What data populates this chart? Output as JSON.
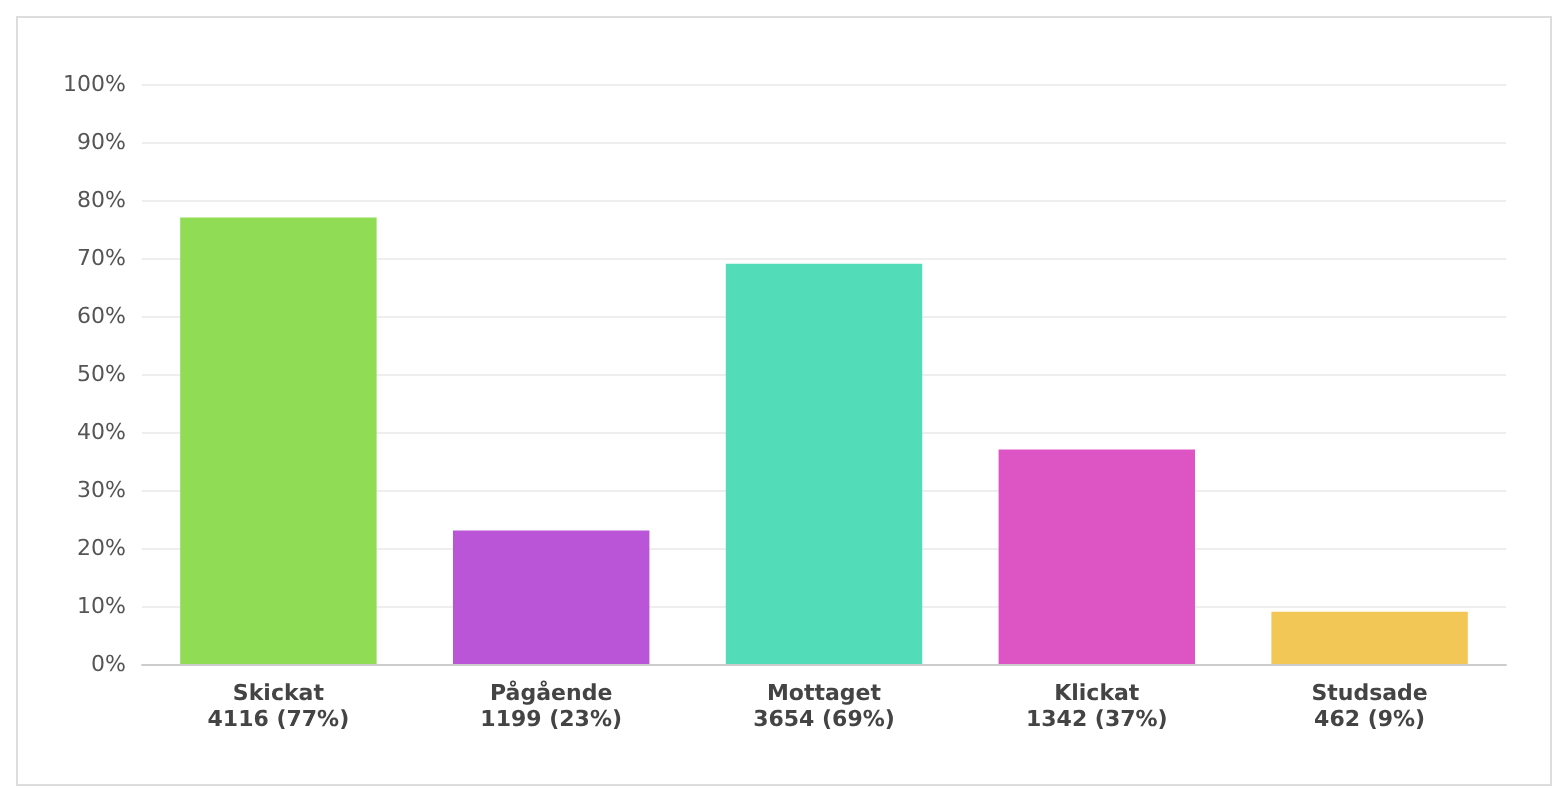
{
  "chart_data": {
    "type": "bar",
    "categories": [
      "Skickat\n4116 (77%)",
      "Pågående\n1199 (23%)",
      "Mottaget\n3654 (69%)",
      "Klickat\n1342 (37%)",
      "Studsade\n462 (9%)"
    ],
    "values": [
      77,
      23,
      69,
      37,
      9
    ],
    "colors": [
      "#91dc55",
      "#bb55d8",
      "#52dcb8",
      "#dd55c4",
      "#f2c755"
    ],
    "ylim": [
      0,
      100
    ],
    "yticks": [
      {
        "value": 0,
        "label": "0%"
      },
      {
        "value": 10,
        "label": "10%"
      },
      {
        "value": 20,
        "label": "20%"
      },
      {
        "value": 30,
        "label": "30%"
      },
      {
        "value": 40,
        "label": "40%"
      },
      {
        "value": 50,
        "label": "50%"
      },
      {
        "value": 60,
        "label": "60%"
      },
      {
        "value": 70,
        "label": "70%"
      },
      {
        "value": 80,
        "label": "80%"
      },
      {
        "value": 90,
        "label": "90%"
      },
      {
        "value": 100,
        "label": "100%"
      }
    ],
    "grid": true
  }
}
